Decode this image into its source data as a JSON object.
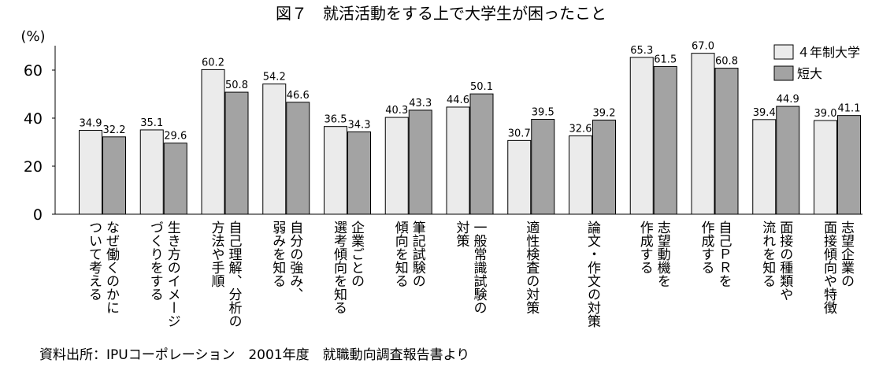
{
  "chart_data": {
    "type": "bar",
    "title": "図７　就活活動をする上で大学生が困ったこと",
    "y_label": "(%)",
    "source": "資料出所：IPUコーポレーション　2001年度　就職動向調査報告書より",
    "categories": [
      [
        "なぜ働くのかに",
        "ついて考える"
      ],
      [
        "生き方のイメージ",
        "づくりをする"
      ],
      [
        "自己理解、分析の",
        "方法や手順"
      ],
      [
        "自分の強み、",
        "弱みを知る"
      ],
      [
        "企業ごとの",
        "選考傾向を知る"
      ],
      [
        "筆記試験の",
        "傾向を知る"
      ],
      [
        "一般常識試験の",
        "対策"
      ],
      [
        "適性検査の対策"
      ],
      [
        "論文・作文の対策"
      ],
      [
        "志望動機を",
        "作成する"
      ],
      [
        "自己ＰＲを",
        "作成する"
      ],
      [
        "面接の種類や",
        "流れを知る"
      ],
      [
        "志望企業の",
        "面接傾向や特徴"
      ]
    ],
    "series": [
      {
        "name": "４年制大学",
        "color": "#ebebeb",
        "values": [
          34.9,
          35.1,
          60.2,
          54.2,
          36.5,
          40.3,
          44.6,
          30.7,
          32.6,
          65.3,
          67.0,
          39.4,
          39.0
        ],
        "value_labels": [
          "34.9",
          "35.1",
          "60.2",
          "54.2",
          "36.5",
          "40.3",
          "44.6",
          "30.7",
          "32.6",
          "65.3",
          "67.0",
          "39.4",
          "39.0"
        ]
      },
      {
        "name": "短大",
        "color": "#a3a3a3",
        "values": [
          32.2,
          29.6,
          50.8,
          46.6,
          34.3,
          43.3,
          50.1,
          39.5,
          39.2,
          61.5,
          60.8,
          44.9,
          41.1
        ],
        "value_labels": [
          "32.2",
          "29.6",
          "50.8",
          "46.6",
          "34.3",
          "43.3",
          "50.1",
          "39.5",
          "39.2",
          "61.5",
          "60.8",
          "44.9",
          "41.1"
        ]
      }
    ],
    "ylim": [
      0,
      70
    ],
    "yticks": [
      0,
      20,
      40,
      60
    ],
    "legend": "top-right"
  }
}
